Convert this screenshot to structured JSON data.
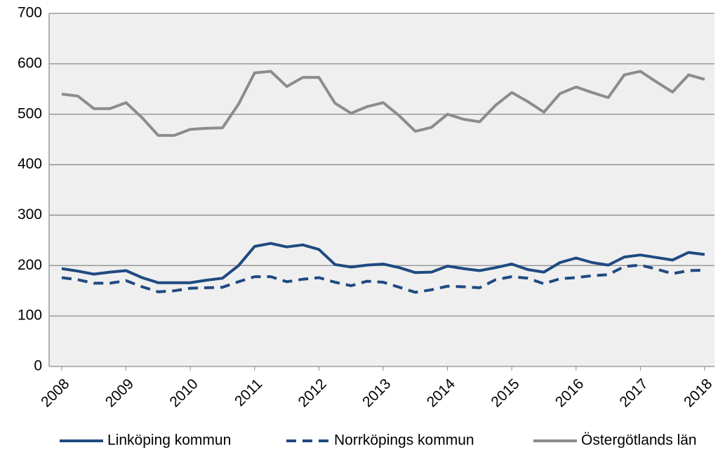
{
  "chart_data": {
    "type": "line",
    "categories": [
      "2008",
      null,
      null,
      null,
      "2009",
      null,
      null,
      null,
      "2010",
      null,
      null,
      null,
      "2011",
      null,
      null,
      null,
      "2012",
      null,
      null,
      null,
      "2013",
      null,
      null,
      null,
      "2014",
      null,
      null,
      null,
      "2015",
      null,
      null,
      null,
      "2016",
      null,
      null,
      null,
      "2017",
      null,
      null,
      null,
      "2018"
    ],
    "series": [
      {
        "name": "Linköping kommun",
        "color": "#1f4a80",
        "line_style": "solid",
        "values": [
          194,
          189,
          183,
          187,
          190,
          176,
          166,
          166,
          166,
          171,
          175,
          200,
          238,
          244,
          237,
          241,
          232,
          202,
          197,
          201,
          203,
          196,
          186,
          187,
          199,
          194,
          190,
          196,
          203,
          192,
          187,
          206,
          215,
          206,
          201,
          217,
          221,
          216,
          211,
          226,
          222
        ]
      },
      {
        "name": "Norrköpings kommun",
        "color": "#1f4a80",
        "line_style": "dashed",
        "values": [
          176,
          172,
          165,
          165,
          170,
          158,
          148,
          150,
          155,
          156,
          157,
          168,
          178,
          178,
          168,
          173,
          176,
          167,
          160,
          169,
          167,
          157,
          147,
          152,
          159,
          158,
          156,
          172,
          178,
          175,
          164,
          174,
          176,
          180,
          182,
          198,
          201,
          193,
          184,
          190,
          191
        ]
      },
      {
        "name": "Östergötlands län",
        "color": "#8c8c8c",
        "line_style": "solid",
        "values": [
          540,
          536,
          511,
          511,
          523,
          493,
          458,
          458,
          470,
          472,
          473,
          520,
          582,
          585,
          555,
          573,
          573,
          522,
          502,
          515,
          523,
          497,
          466,
          474,
          500,
          490,
          485,
          518,
          543,
          525,
          504,
          541,
          554,
          543,
          533,
          578,
          585,
          564,
          544,
          578,
          569
        ]
      }
    ],
    "ylim": [
      0,
      700
    ],
    "yticks": [
      0,
      100,
      200,
      300,
      400,
      500,
      600,
      700
    ],
    "grid": true
  }
}
